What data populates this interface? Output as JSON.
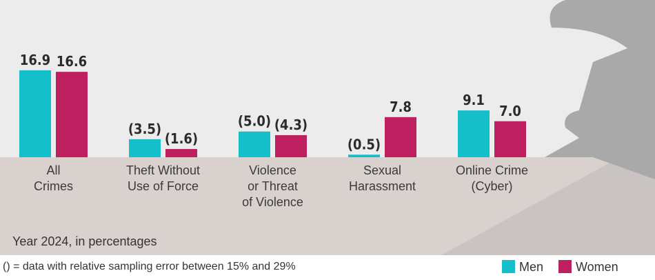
{
  "chart_data": {
    "type": "bar",
    "subtitle": "Year 2024, in percentages",
    "note": "() = data with relative sampling error between 15% and 29%",
    "categories": [
      "All\nCrimes",
      "Theft Without\nUse of Force",
      "Violence\nor Threat\nof Violence",
      "Sexual\nHarassment",
      "Online Crime\n(Cyber)"
    ],
    "series": [
      {
        "name": "Men",
        "color": "#15bfca",
        "values": [
          16.9,
          3.5,
          5.0,
          0.5,
          9.1
        ],
        "value_labels": [
          "16.9",
          "(3.5)",
          "(5.0)",
          "(0.5)",
          "9.1"
        ]
      },
      {
        "name": "Women",
        "color": "#bd1f5f",
        "values": [
          16.6,
          1.6,
          4.3,
          7.8,
          7.0
        ],
        "value_labels": [
          "16.6",
          "(1.6)",
          "(4.3)",
          "7.8",
          "7.0"
        ]
      }
    ]
  }
}
